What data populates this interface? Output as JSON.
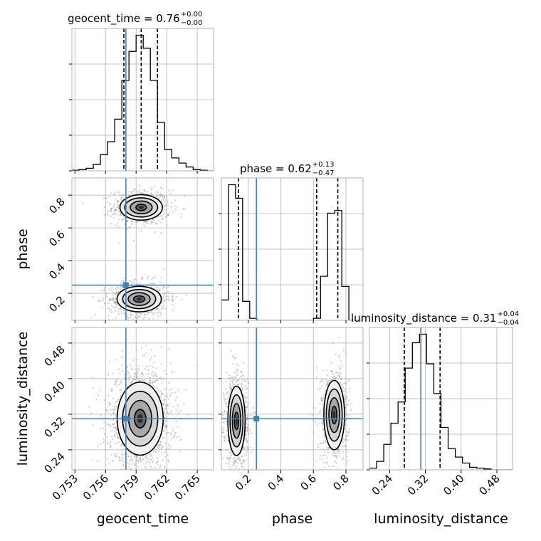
{
  "chart_data": {
    "type": "corner",
    "parameters": [
      "geocent_time",
      "phase",
      "luminosity_distance"
    ],
    "axis_labels": {
      "geocent_time": "geocent_time",
      "phase": "phase",
      "luminosity_distance": "luminosity_distance"
    },
    "ranges": {
      "geocent_time": [
        0.7527,
        0.7666
      ],
      "phase": [
        0.035,
        0.905
      ],
      "luminosity_distance": [
        0.195,
        0.515
      ]
    },
    "ticks": {
      "geocent_time": [
        0.753,
        0.756,
        0.759,
        0.762,
        0.765
      ],
      "phase": [
        0.2,
        0.4,
        0.6,
        0.8
      ],
      "luminosity_distance": [
        0.24,
        0.32,
        0.4,
        0.48
      ]
    },
    "tick_labels": {
      "geocent_time": [
        "0.753",
        "0.756",
        "0.759",
        "0.762",
        "0.765"
      ],
      "phase": [
        "0.2",
        "0.4",
        "0.6",
        "0.8"
      ],
      "luminosity_distance": [
        "0.24",
        "0.32",
        "0.40",
        "0.48"
      ]
    },
    "truths": {
      "geocent_time": 0.758,
      "phase": 0.25,
      "luminosity_distance": 0.31
    },
    "titles": [
      {
        "param": "geocent_time",
        "text": "geocent_time = 0.76",
        "sup": "+0.00",
        "sub": "−0.00"
      },
      {
        "param": "phase",
        "text": "phase = 0.62",
        "sup": "+0.13",
        "sub": "−0.47"
      },
      {
        "param": "luminosity_distance",
        "text": "luminosity_distance = 0.31",
        "sup": "+0.04",
        "sub": "−0.04"
      }
    ],
    "quantiles": {
      "geocent_time": [
        0.7578,
        0.7595,
        0.7611
      ],
      "phase": [
        0.14,
        0.62,
        0.75
      ],
      "luminosity_distance": [
        0.273,
        0.31,
        0.353
      ]
    },
    "histograms": {
      "geocent_time": {
        "edges": [
          0.7527,
          0.7534,
          0.7541,
          0.7548,
          0.7555,
          0.7562,
          0.7569,
          0.7576,
          0.7583,
          0.759,
          0.7597,
          0.7604,
          0.7611,
          0.7618,
          0.7625,
          0.7632,
          0.7639,
          0.7646,
          0.7653,
          0.766,
          0.7666
        ],
        "counts": [
          1,
          2,
          4,
          10,
          25,
          45,
          80,
          140,
          185,
          210,
          190,
          140,
          75,
          33,
          20,
          12,
          6,
          2,
          1,
          0
        ]
      },
      "phase": {
        "edges": [
          0.035,
          0.0785,
          0.122,
          0.1655,
          0.209,
          0.2525,
          0.296,
          0.3395,
          0.383,
          0.4265,
          0.47,
          0.5135,
          0.557,
          0.6005,
          0.644,
          0.6875,
          0.731,
          0.7745,
          0.818,
          0.8615,
          0.905
        ],
        "counts": [
          30,
          200,
          180,
          28,
          3,
          0,
          0,
          0,
          0,
          0,
          0,
          0,
          0,
          3,
          65,
          158,
          162,
          50,
          0,
          0
        ]
      },
      "luminosity_distance": {
        "edges": [
          0.195,
          0.211,
          0.227,
          0.243,
          0.259,
          0.275,
          0.291,
          0.307,
          0.323,
          0.339,
          0.355,
          0.371,
          0.387,
          0.403,
          0.419,
          0.435,
          0.451,
          0.467,
          0.483,
          0.499,
          0.515
        ],
        "counts": [
          2,
          10,
          30,
          55,
          80,
          120,
          150,
          160,
          125,
          90,
          50,
          25,
          15,
          8,
          3,
          2,
          1,
          0,
          0,
          0
        ]
      }
    },
    "blobs": [
      {
        "x": "geocent_time",
        "y": "phase",
        "cx": 0.7595,
        "cy": 0.725,
        "sx": 0.00105,
        "sy": 0.039,
        "w": 0.47
      },
      {
        "x": "geocent_time",
        "y": "phase",
        "cx": 0.7593,
        "cy": 0.165,
        "sx": 0.00108,
        "sy": 0.039,
        "w": 0.53
      },
      {
        "x": "geocent_time",
        "y": "luminosity_distance",
        "cx": 0.7594,
        "cy": 0.31,
        "sx": 0.00115,
        "sy": 0.041,
        "w": 1.0
      },
      {
        "x": "phase",
        "y": "luminosity_distance",
        "cx": 0.128,
        "cy": 0.305,
        "sx": 0.026,
        "sy": 0.039,
        "w": 0.53
      },
      {
        "x": "phase",
        "y": "luminosity_distance",
        "cx": 0.728,
        "cy": 0.318,
        "sx": 0.032,
        "sy": 0.039,
        "w": 0.47
      }
    ],
    "grid": true,
    "colors": {
      "truth": "#4682b4",
      "lines": "#000000",
      "grid": "#b0b0b0",
      "points": "#9a9a9a"
    }
  }
}
